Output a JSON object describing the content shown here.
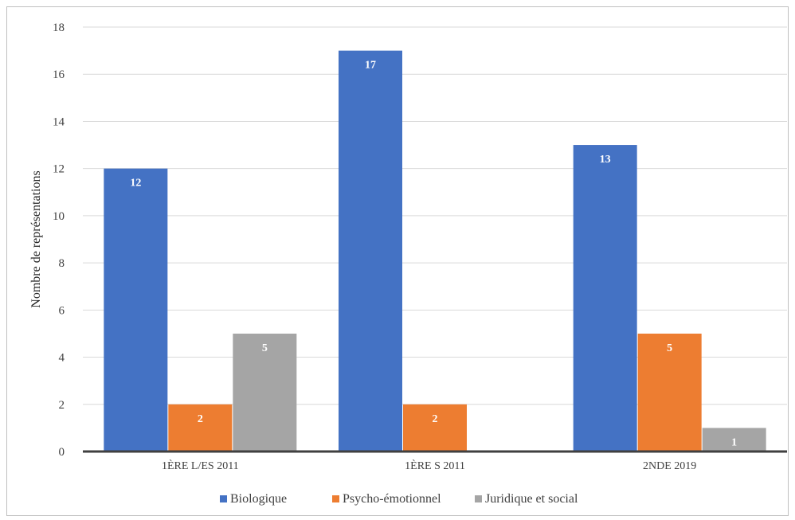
{
  "chart_data": {
    "type": "bar",
    "categories": [
      "1ÈRE L/ES 2011",
      "1ÈRE S 2011",
      "2NDE 2019"
    ],
    "series": [
      {
        "name": "Biologique",
        "values": [
          12,
          17,
          13
        ],
        "color": "#4472C4"
      },
      {
        "name": "Psycho-émotionnel",
        "values": [
          2,
          2,
          5
        ],
        "color": "#ED7D31"
      },
      {
        "name": "Juridique et social",
        "values": [
          5,
          0,
          1
        ],
        "color": "#A5A5A5"
      }
    ],
    "ylabel": "Nombre de représentations",
    "xlabel": "",
    "ylim": [
      0,
      18
    ],
    "yticks": [
      0,
      2,
      4,
      6,
      8,
      10,
      12,
      14,
      16,
      18
    ],
    "grid": true,
    "legend": "bottom",
    "data_labels": true
  }
}
